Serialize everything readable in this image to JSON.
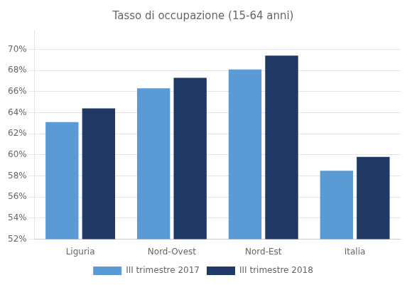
{
  "chart_data": {
    "type": "bar",
    "title": "Tasso di occupazione (15-64 anni)",
    "categories": [
      "Liguria",
      "Nord-Ovest",
      "Nord-Est",
      "Italia"
    ],
    "series": [
      {
        "name": "III trimestre 2017",
        "color": "#5B9BD5",
        "values": [
          63.1,
          66.3,
          68.1,
          58.5
        ]
      },
      {
        "name": "III trimestre 2018",
        "color": "#1F3864",
        "values": [
          64.4,
          67.3,
          69.4,
          59.8
        ]
      }
    ],
    "ylim": [
      52,
      71.85
    ],
    "yticks": [
      {
        "value": 52,
        "label": "52%"
      },
      {
        "value": 54,
        "label": "54%"
      },
      {
        "value": 56,
        "label": "56%"
      },
      {
        "value": 58,
        "label": "58%"
      },
      {
        "value": 60,
        "label": "60%"
      },
      {
        "value": 62,
        "label": "62%"
      },
      {
        "value": 64,
        "label": "64%"
      },
      {
        "value": 66,
        "label": "66%"
      },
      {
        "value": 68,
        "label": "68%"
      },
      {
        "value": 70,
        "label": "70%"
      }
    ],
    "grid": true,
    "legend": "bottom"
  }
}
